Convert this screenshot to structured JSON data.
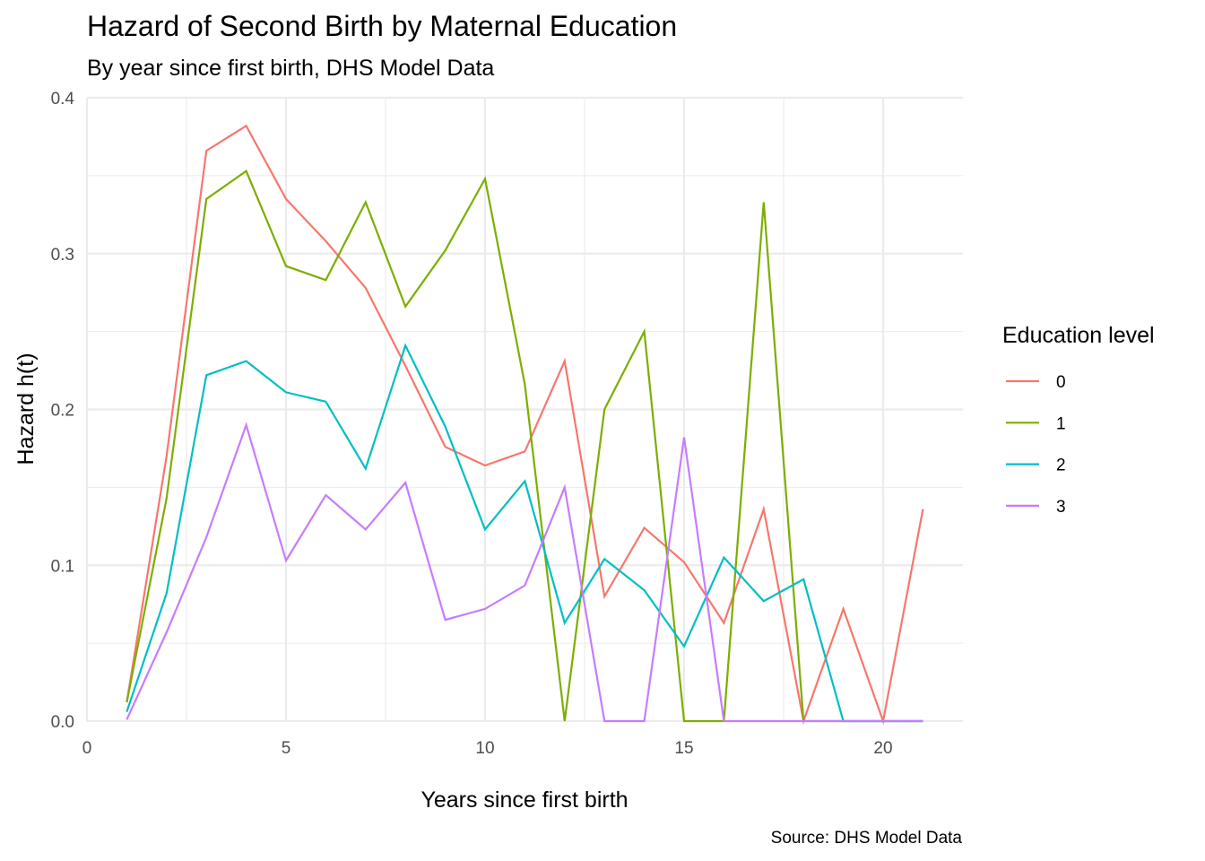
{
  "chart_data": {
    "type": "line",
    "title": "Hazard of Second Birth by Maternal Education",
    "subtitle": "By year since first birth, DHS Model Data",
    "xlabel": "Years since first birth",
    "ylabel": "Hazard h(t)",
    "caption": "Source: DHS Model Data",
    "xlim": [
      0,
      22
    ],
    "ylim": [
      0,
      0.4
    ],
    "x_ticks": [
      0,
      5,
      10,
      15,
      20
    ],
    "x_tick_labels": [
      "0",
      "5",
      "10",
      "15",
      "20"
    ],
    "y_ticks": [
      0,
      0.1,
      0.2,
      0.3,
      0.4
    ],
    "y_tick_labels": [
      "0.0",
      "0.1",
      "0.2",
      "0.3",
      "0.4"
    ],
    "grid": true,
    "legend": {
      "title": "Education level",
      "position": "right"
    },
    "x": [
      1,
      2,
      3,
      4,
      5,
      6,
      7,
      8,
      9,
      10,
      11,
      12,
      13,
      14,
      15,
      16,
      17,
      18,
      19,
      20,
      21
    ],
    "series": [
      {
        "name": "0",
        "color": "#F8766D",
        "values": [
          0.012,
          0.17,
          0.366,
          0.382,
          0.335,
          0.308,
          0.278,
          0.228,
          0.176,
          0.164,
          0.173,
          0.231,
          0.08,
          0.124,
          0.102,
          0.063,
          0.136,
          0.0,
          0.072,
          0.0,
          0.136
        ]
      },
      {
        "name": "1",
        "color": "#7CAE00",
        "values": [
          0.012,
          0.143,
          0.335,
          0.353,
          0.292,
          0.283,
          0.333,
          0.266,
          0.302,
          0.348,
          0.216,
          0.0,
          0.2,
          0.25,
          0.0,
          0.0,
          0.333,
          0.0,
          0.0,
          0.0,
          0.0
        ]
      },
      {
        "name": "2",
        "color": "#00BFC4",
        "values": [
          0.006,
          0.082,
          0.222,
          0.231,
          0.211,
          0.205,
          0.162,
          0.241,
          0.189,
          0.123,
          0.154,
          0.063,
          0.104,
          0.084,
          0.048,
          0.105,
          0.077,
          0.091,
          0.0,
          0.0,
          0.0
        ]
      },
      {
        "name": "3",
        "color": "#C77CFF",
        "values": [
          0.001,
          0.057,
          0.118,
          0.19,
          0.103,
          0.145,
          0.123,
          0.153,
          0.065,
          0.072,
          0.087,
          0.15,
          0.0,
          0.0,
          0.182,
          0.0,
          0.0,
          0.0,
          0.0,
          0.0,
          0.0
        ]
      }
    ]
  }
}
